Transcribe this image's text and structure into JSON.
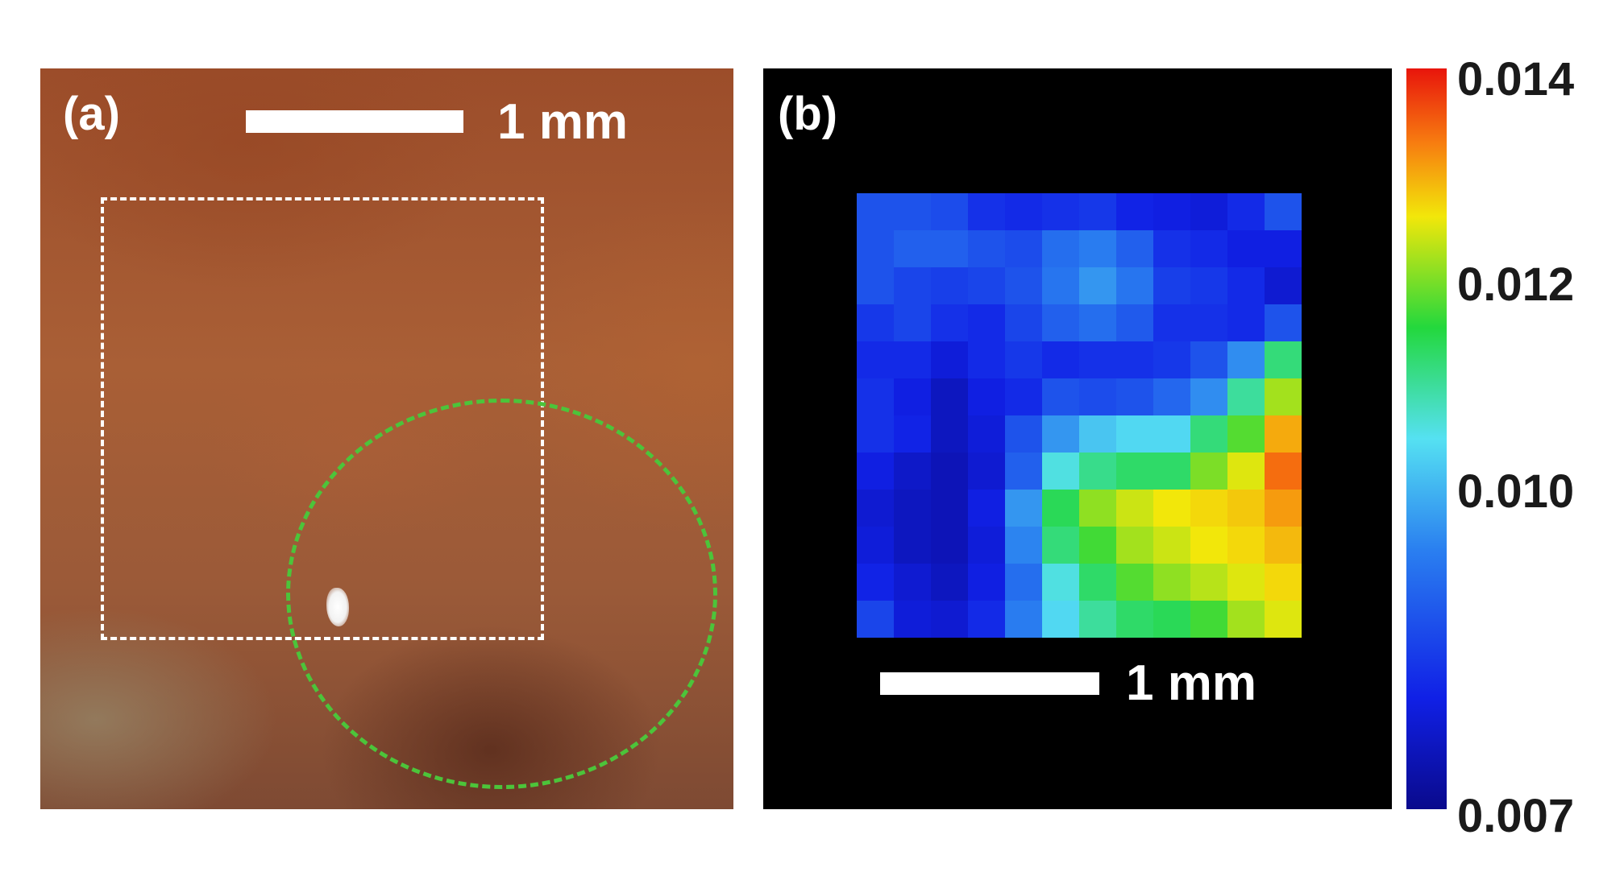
{
  "panel_a": {
    "label": "(a)",
    "scale_bar_text": "1 mm"
  },
  "panel_b": {
    "label": "(b)",
    "scale_bar_text": "1 mm",
    "heatmap_grid": [
      [
        0.0088,
        0.0088,
        0.0087,
        0.0083,
        0.0082,
        0.0083,
        0.0084,
        0.0081,
        0.008,
        0.0079,
        0.0082,
        0.0088
      ],
      [
        0.0088,
        0.009,
        0.009,
        0.0088,
        0.0087,
        0.0092,
        0.0094,
        0.009,
        0.0083,
        0.0082,
        0.008,
        0.008
      ],
      [
        0.0088,
        0.0086,
        0.0085,
        0.0086,
        0.0088,
        0.0093,
        0.0097,
        0.0093,
        0.0085,
        0.0084,
        0.0082,
        0.0078
      ],
      [
        0.0084,
        0.0086,
        0.0083,
        0.0082,
        0.0086,
        0.009,
        0.0092,
        0.0089,
        0.0083,
        0.0083,
        0.0082,
        0.0088
      ],
      [
        0.0082,
        0.0082,
        0.0079,
        0.0082,
        0.0084,
        0.0082,
        0.0083,
        0.0083,
        0.0084,
        0.0088,
        0.0096,
        0.0112
      ],
      [
        0.0083,
        0.008,
        0.0076,
        0.008,
        0.0082,
        0.0088,
        0.0087,
        0.0088,
        0.0091,
        0.0096,
        0.011,
        0.0122
      ],
      [
        0.0083,
        0.0081,
        0.0076,
        0.0079,
        0.0088,
        0.0097,
        0.0102,
        0.0104,
        0.0104,
        0.0112,
        0.0118,
        0.013
      ],
      [
        0.008,
        0.0077,
        0.0075,
        0.0078,
        0.009,
        0.0106,
        0.0111,
        0.0113,
        0.0113,
        0.012,
        0.0125,
        0.0134
      ],
      [
        0.0078,
        0.0076,
        0.0075,
        0.008,
        0.0097,
        0.0114,
        0.0121,
        0.0124,
        0.0126,
        0.0127,
        0.0128,
        0.0131
      ],
      [
        0.0079,
        0.0076,
        0.0075,
        0.0079,
        0.0095,
        0.0112,
        0.0117,
        0.0122,
        0.0124,
        0.0126,
        0.0127,
        0.0129
      ],
      [
        0.0081,
        0.0078,
        0.0076,
        0.008,
        0.0092,
        0.0106,
        0.0113,
        0.0118,
        0.0121,
        0.0123,
        0.0125,
        0.0127
      ],
      [
        0.0086,
        0.0079,
        0.0078,
        0.0082,
        0.0094,
        0.0104,
        0.011,
        0.0113,
        0.0114,
        0.0117,
        0.0122,
        0.0125
      ]
    ]
  },
  "colorbar": {
    "ticks": [
      "0.014",
      "0.012",
      "0.010",
      "0.007"
    ],
    "vmin": 0.007,
    "vmax": 0.014
  }
}
